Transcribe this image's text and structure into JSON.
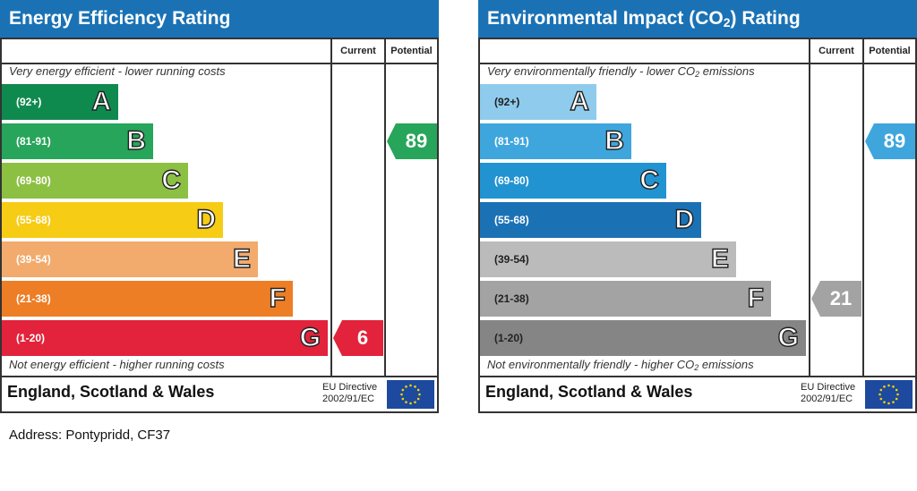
{
  "energy_panel": {
    "title": "Energy Efficiency Rating",
    "col_current": "Current",
    "col_potential": "Potential",
    "top_note": "Very energy efficient - lower running costs",
    "bottom_note": "Not energy efficient - higher running costs",
    "footer_region": "England, Scotland & Wales",
    "footer_directive_1": "EU Directive",
    "footer_directive_2": "2002/91/EC"
  },
  "impact_panel": {
    "title_pre": "Environmental Impact (CO",
    "title_sub": "2",
    "title_post": ") Rating",
    "col_current": "Current",
    "col_potential": "Potential",
    "top_note_pre": "Very environmentally friendly - lower CO",
    "top_note_sub": "2",
    "top_note_post": " emissions",
    "bottom_note_pre": "Not environmentally friendly - higher CO",
    "bottom_note_sub": "2",
    "bottom_note_post": " emissions",
    "footer_region": "England, Scotland & Wales",
    "footer_directive_1": "EU Directive",
    "footer_directive_2": "2002/91/EC"
  },
  "address": "Address: Pontypridd, CF37",
  "chart_data": [
    {
      "type": "bar",
      "title": "Energy Efficiency Rating",
      "categories": [
        "A",
        "B",
        "C",
        "D",
        "E",
        "F",
        "G"
      ],
      "ranges": [
        "(92+)",
        "(81-91)",
        "(69-80)",
        "(55-68)",
        "(39-54)",
        "(21-38)",
        "(1-20)"
      ],
      "colors": [
        "#0f8a4f",
        "#27a55a",
        "#8cc043",
        "#f6cc15",
        "#f2ab6d",
        "#ed7e26",
        "#e2233b"
      ],
      "current": 6,
      "current_band": "G",
      "current_color": "#e2233b",
      "potential": 89,
      "potential_band": "B",
      "potential_color": "#27a55a"
    },
    {
      "type": "bar",
      "title": "Environmental Impact (CO2) Rating",
      "categories": [
        "A",
        "B",
        "C",
        "D",
        "E",
        "F",
        "G"
      ],
      "ranges": [
        "(92+)",
        "(81-91)",
        "(69-80)",
        "(55-68)",
        "(39-54)",
        "(21-38)",
        "(1-20)"
      ],
      "colors": [
        "#8fcbec",
        "#3fa6dd",
        "#2293d1",
        "#1a72b5",
        "#bbbbbb",
        "#a3a3a3",
        "#858585"
      ],
      "current": 21,
      "current_band": "F",
      "current_color": "#a3a3a3",
      "potential": 89,
      "potential_band": "B",
      "potential_color": "#3fa6dd"
    }
  ]
}
